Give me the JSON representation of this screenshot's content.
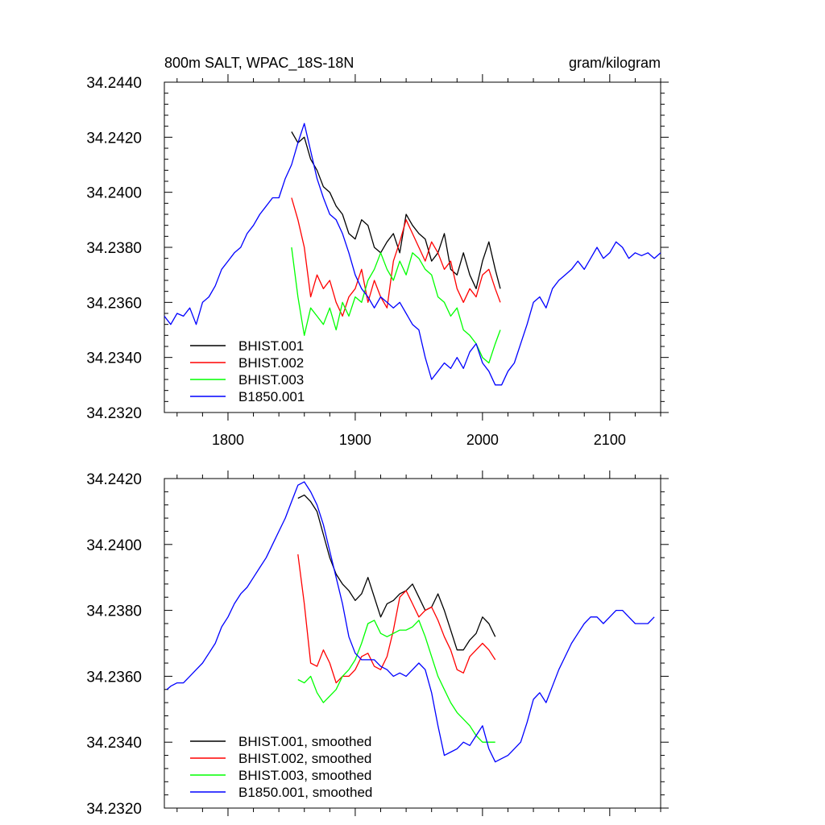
{
  "header": {
    "left_title": "800m SALT, WPAC_18S-18N",
    "right_title": "gram/kilogram"
  },
  "chart_data": [
    {
      "type": "line",
      "title": "800m SALT, WPAC_18S-18N",
      "units": "gram/kilogram",
      "xlim": [
        1750,
        2140
      ],
      "ylim": [
        34.232,
        34.244
      ],
      "xticks": [
        "1800",
        "1900",
        "2000",
        "2100"
      ],
      "yticks": [
        "34.2320",
        "34.2340",
        "34.2360",
        "34.2380",
        "34.2400",
        "34.2420",
        "34.2440"
      ],
      "legend_position": "bottom-left",
      "series": [
        {
          "name": "BHIST.001",
          "color": "#000000",
          "x": [
            1850,
            1855,
            1860,
            1865,
            1870,
            1875,
            1880,
            1885,
            1890,
            1895,
            1900,
            1905,
            1910,
            1915,
            1920,
            1925,
            1930,
            1935,
            1940,
            1945,
            1950,
            1955,
            1960,
            1965,
            1970,
            1975,
            1980,
            1985,
            1990,
            1995,
            2000,
            2005,
            2010,
            2014
          ],
          "y": [
            34.2422,
            34.2418,
            34.242,
            34.2412,
            34.2408,
            34.2402,
            34.24,
            34.2395,
            34.2392,
            34.2385,
            34.2383,
            34.239,
            34.2388,
            34.238,
            34.2378,
            34.2382,
            34.2385,
            34.2378,
            34.2392,
            34.2388,
            34.2385,
            34.2383,
            34.2375,
            34.2378,
            34.2385,
            34.2372,
            34.237,
            34.2378,
            34.237,
            34.2365,
            34.2375,
            34.2382,
            34.2372,
            34.2365
          ]
        },
        {
          "name": "BHIST.002",
          "color": "#ff0000",
          "x": [
            1850,
            1855,
            1860,
            1865,
            1870,
            1875,
            1880,
            1885,
            1890,
            1895,
            1900,
            1905,
            1910,
            1915,
            1920,
            1925,
            1930,
            1935,
            1940,
            1945,
            1950,
            1955,
            1960,
            1965,
            1970,
            1975,
            1980,
            1985,
            1990,
            1995,
            2000,
            2005,
            2010,
            2014
          ],
          "y": [
            34.2398,
            34.239,
            34.238,
            34.2362,
            34.237,
            34.2365,
            34.2368,
            34.236,
            34.2355,
            34.2362,
            34.2365,
            34.2372,
            34.236,
            34.2368,
            34.2362,
            34.2358,
            34.2375,
            34.2382,
            34.239,
            34.2385,
            34.238,
            34.2375,
            34.2382,
            34.2378,
            34.2372,
            34.2375,
            34.2365,
            34.236,
            34.2365,
            34.2362,
            34.237,
            34.2372,
            34.2365,
            34.236
          ]
        },
        {
          "name": "BHIST.003",
          "color": "#00ff00",
          "x": [
            1850,
            1855,
            1860,
            1865,
            1870,
            1875,
            1880,
            1885,
            1890,
            1895,
            1900,
            1905,
            1910,
            1915,
            1920,
            1925,
            1930,
            1935,
            1940,
            1945,
            1950,
            1955,
            1960,
            1965,
            1970,
            1975,
            1980,
            1985,
            1990,
            1995,
            2000,
            2005,
            2010,
            2014
          ],
          "y": [
            34.238,
            34.2362,
            34.2348,
            34.2358,
            34.2355,
            34.2352,
            34.2358,
            34.235,
            34.236,
            34.2355,
            34.2362,
            34.236,
            34.2368,
            34.2372,
            34.2378,
            34.2372,
            34.2368,
            34.2375,
            34.237,
            34.2378,
            34.2376,
            34.2372,
            34.237,
            34.2362,
            34.236,
            34.2355,
            34.2358,
            34.235,
            34.2348,
            34.2345,
            34.234,
            34.2338,
            34.2345,
            34.235
          ]
        },
        {
          "name": "B1850.001",
          "color": "#0000ff",
          "x": [
            1750,
            1755,
            1760,
            1765,
            1770,
            1775,
            1780,
            1785,
            1790,
            1795,
            1800,
            1805,
            1810,
            1815,
            1820,
            1825,
            1830,
            1835,
            1840,
            1845,
            1850,
            1855,
            1860,
            1865,
            1870,
            1875,
            1880,
            1885,
            1890,
            1895,
            1900,
            1905,
            1910,
            1915,
            1920,
            1925,
            1930,
            1935,
            1940,
            1945,
            1950,
            1955,
            1960,
            1965,
            1970,
            1975,
            1980,
            1985,
            1990,
            1995,
            2000,
            2005,
            2010,
            2015,
            2020,
            2025,
            2030,
            2035,
            2040,
            2045,
            2050,
            2055,
            2060,
            2065,
            2070,
            2075,
            2080,
            2085,
            2090,
            2095,
            2100,
            2105,
            2110,
            2115,
            2120,
            2125,
            2130,
            2135,
            2140
          ],
          "y": [
            34.2355,
            34.2352,
            34.2356,
            34.2355,
            34.2358,
            34.2352,
            34.236,
            34.2362,
            34.2366,
            34.2372,
            34.2375,
            34.2378,
            34.238,
            34.2385,
            34.2388,
            34.2392,
            34.2395,
            34.2398,
            34.2398,
            34.2405,
            34.241,
            34.2418,
            34.2425,
            34.2415,
            34.2405,
            34.2398,
            34.2392,
            34.239,
            34.2385,
            34.2378,
            34.237,
            34.2365,
            34.2362,
            34.2358,
            34.2362,
            34.236,
            34.2358,
            34.236,
            34.2356,
            34.2352,
            34.235,
            34.234,
            34.2332,
            34.2335,
            34.2338,
            34.2336,
            34.234,
            34.2336,
            34.2342,
            34.2345,
            34.2338,
            34.2335,
            34.233,
            34.233,
            34.2335,
            34.2338,
            34.2345,
            34.2352,
            34.236,
            34.2362,
            34.2358,
            34.2365,
            34.2368,
            34.237,
            34.2372,
            34.2375,
            34.2372,
            34.2376,
            34.238,
            34.2376,
            34.2378,
            34.2382,
            34.238,
            34.2376,
            34.2378,
            34.2377,
            34.2378,
            34.2376,
            34.2378
          ]
        }
      ]
    },
    {
      "type": "line",
      "xlim": [
        1750,
        2140
      ],
      "ylim": [
        34.232,
        34.242
      ],
      "xticks": [],
      "yticks": [
        "34.2320",
        "34.2340",
        "34.2360",
        "34.2380",
        "34.2400",
        "34.2420"
      ],
      "legend_position": "bottom-left",
      "series": [
        {
          "name": "BHIST.001, smoothed",
          "color": "#000000",
          "x": [
            1855,
            1860,
            1865,
            1870,
            1875,
            1880,
            1885,
            1890,
            1895,
            1900,
            1905,
            1910,
            1915,
            1920,
            1925,
            1930,
            1935,
            1940,
            1945,
            1950,
            1955,
            1960,
            1965,
            1970,
            1975,
            1980,
            1985,
            1990,
            1995,
            2000,
            2005,
            2010
          ],
          "y": [
            34.2414,
            34.2415,
            34.2413,
            34.241,
            34.2403,
            34.2396,
            34.2391,
            34.2388,
            34.2386,
            34.2383,
            34.2385,
            34.239,
            34.2384,
            34.2378,
            34.2382,
            34.2383,
            34.2385,
            34.2386,
            34.2388,
            34.2384,
            34.238,
            34.2381,
            34.2385,
            34.238,
            34.2374,
            34.2368,
            34.2368,
            34.2371,
            34.2373,
            34.2378,
            34.2376,
            34.2372
          ]
        },
        {
          "name": "BHIST.002, smoothed",
          "color": "#ff0000",
          "x": [
            1855,
            1860,
            1865,
            1870,
            1875,
            1880,
            1885,
            1890,
            1895,
            1900,
            1905,
            1910,
            1915,
            1920,
            1925,
            1930,
            1935,
            1940,
            1945,
            1950,
            1955,
            1960,
            1965,
            1970,
            1975,
            1980,
            1985,
            1990,
            1995,
            2000,
            2005,
            2010
          ],
          "y": [
            34.2397,
            34.2382,
            34.2364,
            34.2363,
            34.2368,
            34.2364,
            34.2358,
            34.236,
            34.236,
            34.2362,
            34.2366,
            34.2367,
            34.2363,
            34.2362,
            34.2366,
            34.2374,
            34.2384,
            34.2386,
            34.2382,
            34.2378,
            34.238,
            34.2381,
            34.2377,
            34.2372,
            34.2368,
            34.2362,
            34.2361,
            34.2366,
            34.2368,
            34.237,
            34.2368,
            34.2365
          ]
        },
        {
          "name": "BHIST.003, smoothed",
          "color": "#00ff00",
          "x": [
            1855,
            1860,
            1865,
            1870,
            1875,
            1880,
            1885,
            1890,
            1895,
            1900,
            1905,
            1910,
            1915,
            1920,
            1925,
            1930,
            1935,
            1940,
            1945,
            1950,
            1955,
            1960,
            1965,
            1970,
            1975,
            1980,
            1985,
            1990,
            1995,
            2000,
            2005,
            2010
          ],
          "y": [
            34.2359,
            34.2358,
            34.236,
            34.2355,
            34.2352,
            34.2354,
            34.2356,
            34.236,
            34.2362,
            34.2365,
            34.237,
            34.2376,
            34.2377,
            34.2373,
            34.2372,
            34.2373,
            34.2374,
            34.2374,
            34.2375,
            34.2377,
            34.2372,
            34.2366,
            34.236,
            34.2356,
            34.2352,
            34.2349,
            34.2347,
            34.2345,
            34.2342,
            34.234,
            34.234,
            34.234
          ]
        },
        {
          "name": "B1850.001, smoothed",
          "color": "#0000ff",
          "x": [
            1752,
            1755,
            1760,
            1765,
            1770,
            1775,
            1780,
            1785,
            1790,
            1795,
            1800,
            1805,
            1810,
            1815,
            1820,
            1825,
            1830,
            1835,
            1840,
            1845,
            1850,
            1855,
            1860,
            1865,
            1870,
            1875,
            1880,
            1885,
            1890,
            1895,
            1900,
            1905,
            1910,
            1915,
            1920,
            1925,
            1930,
            1935,
            1940,
            1945,
            1950,
            1955,
            1960,
            1965,
            1970,
            1975,
            1980,
            1985,
            1990,
            1995,
            2000,
            2005,
            2010,
            2015,
            2020,
            2025,
            2030,
            2035,
            2040,
            2045,
            2050,
            2055,
            2060,
            2065,
            2070,
            2075,
            2080,
            2085,
            2090,
            2095,
            2100,
            2105,
            2110,
            2115,
            2120,
            2125,
            2130,
            2135
          ],
          "y": [
            34.2356,
            34.2357,
            34.2358,
            34.2358,
            34.236,
            34.2362,
            34.2364,
            34.2367,
            34.237,
            34.2375,
            34.2378,
            34.2382,
            34.2385,
            34.2387,
            34.239,
            34.2393,
            34.2396,
            34.24,
            34.2404,
            34.2408,
            34.2413,
            34.2418,
            34.2419,
            34.2416,
            34.2412,
            34.2406,
            34.2398,
            34.239,
            34.2382,
            34.2372,
            34.2367,
            34.2365,
            34.2365,
            34.2365,
            34.2363,
            34.2362,
            34.236,
            34.2361,
            34.236,
            34.2362,
            34.2364,
            34.2362,
            34.2355,
            34.2345,
            34.2336,
            34.2337,
            34.2338,
            34.234,
            34.2339,
            34.2342,
            34.2345,
            34.2338,
            34.2334,
            34.2335,
            34.2336,
            34.2338,
            34.234,
            34.2346,
            34.2353,
            34.2355,
            34.2352,
            34.2357,
            34.2362,
            34.2366,
            34.237,
            34.2373,
            34.2376,
            34.2378,
            34.2378,
            34.2376,
            34.2378,
            34.238,
            34.238,
            34.2378,
            34.2376,
            34.2376,
            34.2376,
            34.2378
          ]
        }
      ]
    }
  ]
}
